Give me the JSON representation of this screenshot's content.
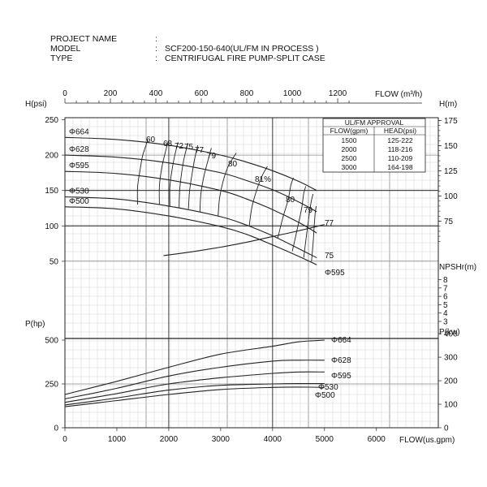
{
  "header": {
    "rows": [
      {
        "label": "PROJECT NAME",
        "sep": ":",
        "value": ""
      },
      {
        "label": "MODEL",
        "sep": ":",
        "value": "SCF200-150-640(UL/FM IN PROCESS )"
      },
      {
        "label": "TYPE",
        "sep": ":",
        "value": "CENTRIFUGAL FIRE PUMP-SPLIT CASE"
      }
    ]
  },
  "approval_table": {
    "title": "UL/FM APPROVAL",
    "columns": [
      "FLOW(gpm)",
      "HEAD(psi)"
    ],
    "rows": [
      [
        "1500",
        "125-222"
      ],
      [
        "2000",
        "118-216"
      ],
      [
        "2500",
        "110-209"
      ],
      [
        "3000",
        "164-198"
      ]
    ]
  },
  "chart_data": {
    "type": "line",
    "axes": {
      "top_x": {
        "label": "FLOW (m³/h)",
        "ticks": [
          "0",
          "200",
          "400",
          "600",
          "800",
          "1000",
          "1200"
        ],
        "range": [
          0,
          1362
        ]
      },
      "bottom_x": {
        "label": "FLOW(us.gpm)",
        "ticks": [
          "0",
          "1000",
          "2000",
          "3000",
          "4000",
          "5000",
          "6000"
        ],
        "range": [
          0,
          6000
        ]
      },
      "head_left": {
        "label": "H(psi)",
        "ticks": [
          "50",
          "100",
          "150",
          "200",
          "250"
        ],
        "range": [
          0,
          250
        ]
      },
      "head_right": {
        "label": "H(m)",
        "ticks": [
          "75",
          "100",
          "125",
          "150",
          "175"
        ]
      },
      "npsh_right": {
        "label": "NPSHr(m)",
        "ticks": [
          "3",
          "4",
          "5",
          "6",
          "7",
          "8"
        ]
      },
      "power_left": {
        "label": "P(hp)",
        "ticks": [
          "0",
          "250",
          "500"
        ],
        "range": [
          0,
          500
        ]
      },
      "power_right": {
        "label": "P(kw)",
        "ticks": [
          "0",
          "100",
          "200",
          "300",
          "400"
        ]
      }
    },
    "head_curves": [
      {
        "name": "Φ664",
        "x": [
          0,
          1000,
          2000,
          3000,
          3500,
          4000,
          4500,
          4850
        ],
        "y": [
          225,
          222,
          214,
          200,
          190,
          178,
          163,
          150
        ]
      },
      {
        "name": "Φ628",
        "x": [
          0,
          1000,
          2000,
          3000,
          3500,
          4000,
          4500,
          4850
        ],
        "y": [
          200,
          197,
          189,
          175,
          164,
          151,
          134,
          120
        ]
      },
      {
        "name": "Φ595",
        "x": [
          0,
          1000,
          2000,
          3000,
          3500,
          4000,
          4500,
          4850
        ],
        "y": [
          177,
          174,
          165,
          150,
          138,
          123,
          105,
          90
        ]
      },
      {
        "name": "Φ530",
        "x": [
          0,
          1000,
          2000,
          3000,
          3500,
          4000,
          4500,
          4850
        ],
        "y": [
          141,
          138,
          128,
          113,
          101,
          86,
          68,
          55
        ]
      },
      {
        "name": "Φ500",
        "x": [
          0,
          1000,
          2000,
          3000,
          3500,
          4000,
          4500,
          4850
        ],
        "y": [
          127,
          124,
          114,
          99,
          88,
          73,
          57,
          45
        ]
      }
    ],
    "efficiency_labels": [
      "60",
      "68",
      "72",
      "75",
      "77",
      "79",
      "80",
      "81%",
      "80",
      "79",
      "77",
      "75"
    ],
    "efficiency_contours": [
      {
        "x": [
          1400,
          1400,
          1450,
          1500,
          1600
        ],
        "y": [
          130,
          155,
          180,
          200,
          222
        ]
      },
      {
        "x": [
          1820,
          1820,
          1860,
          1920,
          1990
        ],
        "y": [
          130,
          156,
          180,
          200,
          220
        ]
      },
      {
        "x": [
          2020,
          2020,
          2060,
          2110,
          2180
        ],
        "y": [
          128,
          154,
          178,
          198,
          218
        ]
      },
      {
        "x": [
          2200,
          2210,
          2250,
          2300,
          2370
        ],
        "y": [
          126,
          151,
          176,
          197,
          217
        ]
      },
      {
        "x": [
          2380,
          2400,
          2450,
          2500,
          2560
        ],
        "y": [
          124,
          149,
          174,
          195,
          214
        ]
      },
      {
        "x": [
          2600,
          2620,
          2680,
          2750,
          2820
        ],
        "y": [
          120,
          146,
          171,
          191,
          210
        ]
      },
      {
        "x": [
          2950,
          2980,
          3050,
          3150,
          3300
        ],
        "y": [
          114,
          140,
          164,
          185,
          203
        ]
      },
      {
        "x": [
          3550,
          3600,
          3700,
          3800,
          3900
        ],
        "y": [
          100,
          126,
          152,
          171,
          184
        ]
      },
      {
        "x": [
          4100,
          4200,
          4300,
          4350,
          4400
        ],
        "y": [
          83,
          112,
          137,
          157,
          168
        ]
      },
      {
        "x": [
          4380,
          4480,
          4560,
          4600,
          4640
        ],
        "y": [
          64,
          97,
          125,
          146,
          156
        ]
      },
      {
        "x": [
          4600,
          4650,
          4700,
          4740,
          4780
        ],
        "y": [
          55,
          85,
          113,
          133,
          145
        ]
      },
      {
        "x": [
          4750,
          4780,
          4800,
          4820,
          4840
        ],
        "y": [
          50,
          75,
          98,
          118,
          128
        ]
      }
    ],
    "npsh_curve": {
      "name": "Φ595",
      "x": [
        1900,
        2500,
        3000,
        3500,
        4000,
        4500,
        5000
      ],
      "y": [
        58,
        64,
        70,
        77,
        85,
        93,
        102
      ]
    },
    "power_curves": [
      {
        "name": "Φ664",
        "x": [
          0,
          1000,
          2000,
          3000,
          4000,
          4500,
          5000
        ],
        "y": [
          190,
          265,
          345,
          420,
          465,
          490,
          500
        ]
      },
      {
        "name": "Φ628",
        "x": [
          0,
          1000,
          2000,
          3000,
          4000,
          4500,
          5000
        ],
        "y": [
          165,
          225,
          295,
          345,
          380,
          385,
          385
        ]
      },
      {
        "name": "Φ595",
        "x": [
          0,
          1000,
          2000,
          3000,
          4000,
          4500,
          5000
        ],
        "y": [
          145,
          195,
          250,
          285,
          310,
          318,
          318
        ]
      },
      {
        "name": "Φ530",
        "x": [
          0,
          1000,
          2000,
          3000,
          4000,
          4500,
          5000
        ],
        "y": [
          130,
          170,
          215,
          242,
          250,
          252,
          252
        ]
      },
      {
        "name": "Φ500",
        "x": [
          0,
          1000,
          2000,
          3000,
          4000,
          4500,
          5000
        ],
        "y": [
          120,
          155,
          190,
          218,
          230,
          232,
          230
        ]
      }
    ],
    "grid": true
  },
  "colors": {
    "line": "#222222",
    "grid": "#8a8a8a",
    "minor_grid": "#d2d2d2",
    "bold_grid": "#222222"
  }
}
